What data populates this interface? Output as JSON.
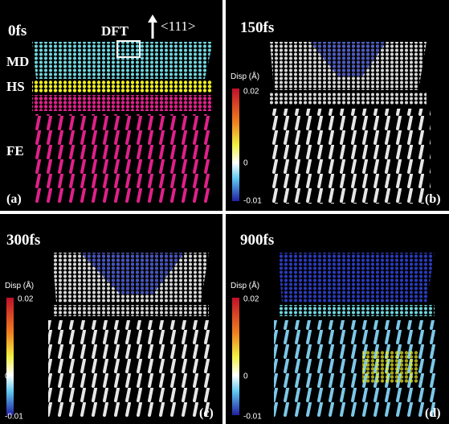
{
  "panels": [
    {
      "time": "0fs",
      "letter": "(a)",
      "labels": {
        "dft": "DFT",
        "direction": "<111>",
        "md": "MD",
        "hs": "HS",
        "fe": "FE"
      }
    },
    {
      "time": "150fs",
      "letter": "(b)",
      "colorbar": {
        "title": "Disp (Å)",
        "ticks": [
          "0.02",
          "0",
          "-0.01"
        ]
      }
    },
    {
      "time": "300fs",
      "letter": "(c)",
      "colorbar": {
        "title": "Disp (Å)",
        "ticks": [
          "0.02",
          "0",
          "-0.01"
        ]
      }
    },
    {
      "time": "900fs",
      "letter": "(d)",
      "colorbar": {
        "title": "Disp (Å)",
        "ticks": [
          "0.02",
          "0",
          "-0.01"
        ]
      }
    }
  ]
}
